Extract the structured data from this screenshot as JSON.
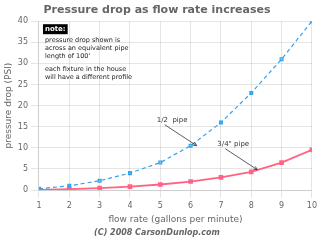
{
  "chart_data": {
    "type": "line",
    "title": "Pressure drop as flow rate increases",
    "x_label": "flow rate (gallons per minute)",
    "y_label": "pressure drop (PSI)",
    "x": [
      1,
      2,
      3,
      4,
      5,
      6,
      7,
      8,
      9,
      10
    ],
    "series": [
      {
        "values": [
          0.3,
          1.0,
          2.2,
          4.0,
          6.5,
          10.5,
          16.0,
          23.0,
          31.0,
          40.0
        ],
        "line_style": "dashed",
        "marker": "square"
      },
      {
        "values": [
          0.05,
          0.2,
          0.45,
          0.8,
          1.3,
          2.0,
          3.0,
          4.3,
          6.5,
          9.5
        ],
        "line_style": "solid",
        "marker": "square"
      }
    ],
    "xlim": [
      1,
      10
    ],
    "xticks": [
      1,
      2,
      3,
      4,
      5,
      6,
      7,
      8,
      9,
      10
    ],
    "ylim": [
      0,
      40
    ],
    "yticks": [
      0,
      5,
      10,
      15,
      20,
      25,
      30,
      35,
      40
    ],
    "grid": true,
    "annotations": [
      {
        "text": "1/2  pipe",
        "x": 6.2,
        "y": 10.5
      },
      {
        "text": "3/4\" pipe",
        "x": 8.2,
        "y": 4.8
      }
    ],
    "note": {
      "title": "note:",
      "lines": [
        [
          "pressure drop shown is",
          "across an equivalent pipe",
          "length of 100'"
        ],
        [
          "each fixture in the house",
          "will have a different profile"
        ]
      ]
    },
    "footer": "(C) 2008 CarsonDunlop.com"
  }
}
